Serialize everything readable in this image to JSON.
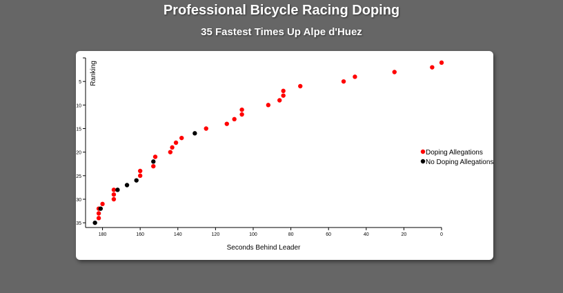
{
  "page": {
    "title": "Professional Bicycle Racing Doping",
    "subtitle": "35 Fastest Times Up Alpe d'Huez"
  },
  "chart_data": {
    "type": "scatter",
    "xlabel": "Seconds Behind Leader",
    "ylabel": "Ranking",
    "xlim": [
      189,
      0
    ],
    "ylim": [
      0,
      36
    ],
    "x_ticks": [
      180,
      160,
      140,
      120,
      100,
      80,
      60,
      40,
      20,
      0
    ],
    "y_ticks": [
      5,
      10,
      15,
      20,
      25,
      30,
      35
    ],
    "grid": false,
    "legend_position": "right",
    "colors": {
      "doping": "#ff0000",
      "no_doping": "#000000"
    },
    "legend": [
      {
        "label": "Doping Allegations",
        "color": "#ff0000"
      },
      {
        "label": "No Doping Allegations",
        "color": "#000000"
      }
    ],
    "series": [
      {
        "name": "Doping Allegations",
        "color": "#ff0000",
        "points": [
          {
            "x": 0,
            "y": 1
          },
          {
            "x": 5,
            "y": 2
          },
          {
            "x": 25,
            "y": 3
          },
          {
            "x": 46,
            "y": 4
          },
          {
            "x": 52,
            "y": 5
          },
          {
            "x": 75,
            "y": 6
          },
          {
            "x": 84,
            "y": 7
          },
          {
            "x": 84,
            "y": 8
          },
          {
            "x": 86,
            "y": 9
          },
          {
            "x": 92,
            "y": 10
          },
          {
            "x": 106,
            "y": 11
          },
          {
            "x": 106,
            "y": 12
          },
          {
            "x": 110,
            "y": 13
          },
          {
            "x": 114,
            "y": 14
          },
          {
            "x": 125,
            "y": 15
          },
          {
            "x": 138,
            "y": 17
          },
          {
            "x": 141,
            "y": 18
          },
          {
            "x": 143,
            "y": 19
          },
          {
            "x": 144,
            "y": 20
          },
          {
            "x": 152,
            "y": 21
          },
          {
            "x": 153,
            "y": 23
          },
          {
            "x": 160,
            "y": 24
          },
          {
            "x": 160,
            "y": 25
          },
          {
            "x": 174,
            "y": 28
          },
          {
            "x": 174,
            "y": 29
          },
          {
            "x": 174,
            "y": 30
          },
          {
            "x": 180,
            "y": 31
          },
          {
            "x": 182,
            "y": 32
          },
          {
            "x": 182,
            "y": 33
          },
          {
            "x": 182,
            "y": 34
          }
        ]
      },
      {
        "name": "No Doping Allegations",
        "color": "#000000",
        "points": [
          {
            "x": 131,
            "y": 16
          },
          {
            "x": 153,
            "y": 22
          },
          {
            "x": 162,
            "y": 26
          },
          {
            "x": 167,
            "y": 27
          },
          {
            "x": 172,
            "y": 28
          },
          {
            "x": 181,
            "y": 32
          },
          {
            "x": 184,
            "y": 35
          }
        ]
      }
    ]
  }
}
